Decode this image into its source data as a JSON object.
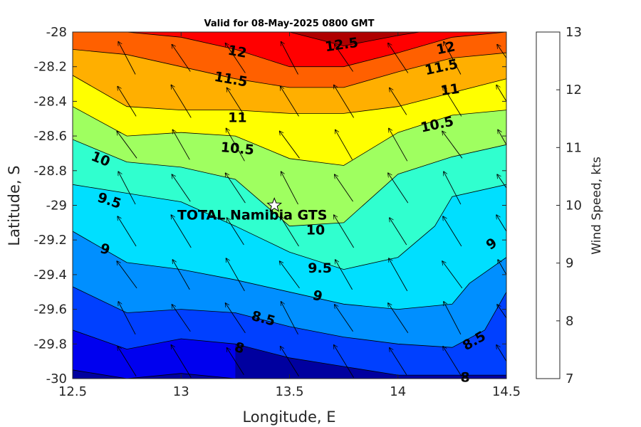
{
  "chart_data": {
    "type": "filled-contour",
    "title": "Valid for 08-May-2025 0800 GMT",
    "xlabel": "Longitude, E",
    "ylabel": "Latitude, S",
    "colorbar_label": "Wind Speed, kts",
    "xlim": [
      12.5,
      14.5
    ],
    "ylim": [
      -30,
      -28
    ],
    "xticks": [
      "12.5",
      "13",
      "13.5",
      "14",
      "14.5"
    ],
    "yticks": [
      "-28",
      "-28.2",
      "-28.4",
      "-28.6",
      "-28.8",
      "-29",
      "-29.2",
      "-29.4",
      "-29.6",
      "-29.8",
      "-30"
    ],
    "colorbar_range": [
      7,
      13
    ],
    "colorbar_ticks": [
      "7",
      "8",
      "9",
      "10",
      "11",
      "12",
      "13"
    ],
    "levels": [
      7,
      7.5,
      8,
      8.5,
      9,
      9.5,
      10,
      10.5,
      11,
      11.5,
      12,
      12.5,
      13
    ],
    "level_colors": [
      "#00009f",
      "#0000ef",
      "#0040ff",
      "#008fff",
      "#00dfff",
      "#30ffcf",
      "#9fff60",
      "#ffff00",
      "#ffaf00",
      "#ff6000",
      "#ff0000",
      "#af0000"
    ],
    "contours": [
      {
        "level": 7.5,
        "points": [
          [
            12.5,
            -29.95
          ],
          [
            12.75,
            -30.0
          ],
          [
            13.0,
            -29.97
          ],
          [
            13.25,
            -30.0
          ]
        ]
      },
      {
        "level": 8,
        "points": [
          [
            12.5,
            -29.72
          ],
          [
            12.75,
            -29.83
          ],
          [
            13.0,
            -29.77
          ],
          [
            13.25,
            -29.8
          ],
          [
            13.5,
            -29.88
          ],
          [
            13.75,
            -29.93
          ],
          [
            14.0,
            -29.98
          ],
          [
            14.25,
            -29.98
          ],
          [
            14.5,
            -29.98
          ]
        ]
      },
      {
        "level": 8.5,
        "points": [
          [
            12.5,
            -29.47
          ],
          [
            12.75,
            -29.62
          ],
          [
            13.0,
            -29.6
          ],
          [
            13.25,
            -29.62
          ],
          [
            13.5,
            -29.7
          ],
          [
            13.75,
            -29.76
          ],
          [
            14.0,
            -29.8
          ],
          [
            14.25,
            -29.82
          ],
          [
            14.4,
            -29.72
          ],
          [
            14.5,
            -29.5
          ]
        ]
      },
      {
        "level": 9,
        "points": [
          [
            12.5,
            -29.15
          ],
          [
            12.75,
            -29.33
          ],
          [
            13.0,
            -29.37
          ],
          [
            13.25,
            -29.43
          ],
          [
            13.5,
            -29.5
          ],
          [
            13.75,
            -29.57
          ],
          [
            14.0,
            -29.6
          ],
          [
            14.25,
            -29.57
          ],
          [
            14.33,
            -29.45
          ],
          [
            14.5,
            -29.3
          ]
        ]
      },
      {
        "level": 9.5,
        "points": [
          [
            12.5,
            -28.88
          ],
          [
            12.75,
            -28.93
          ],
          [
            13.0,
            -28.98
          ],
          [
            13.25,
            -29.12
          ],
          [
            13.5,
            -29.27
          ],
          [
            13.75,
            -29.37
          ],
          [
            14.0,
            -29.3
          ],
          [
            14.17,
            -29.12
          ],
          [
            14.25,
            -28.95
          ],
          [
            14.5,
            -28.88
          ]
        ]
      },
      {
        "level": 10,
        "points": [
          [
            12.5,
            -28.62
          ],
          [
            12.75,
            -28.75
          ],
          [
            13.0,
            -28.78
          ],
          [
            13.25,
            -28.85
          ],
          [
            13.5,
            -29.12
          ],
          [
            13.75,
            -29.1
          ],
          [
            14.0,
            -28.82
          ],
          [
            14.25,
            -28.72
          ],
          [
            14.5,
            -28.65
          ]
        ]
      },
      {
        "level": 10.5,
        "points": [
          [
            12.5,
            -28.43
          ],
          [
            12.75,
            -28.6
          ],
          [
            13.0,
            -28.58
          ],
          [
            13.25,
            -28.6
          ],
          [
            13.5,
            -28.73
          ],
          [
            13.75,
            -28.77
          ],
          [
            14.0,
            -28.58
          ],
          [
            14.25,
            -28.48
          ],
          [
            14.5,
            -28.45
          ]
        ]
      },
      {
        "level": 11,
        "points": [
          [
            12.5,
            -28.25
          ],
          [
            12.75,
            -28.43
          ],
          [
            13.0,
            -28.45
          ],
          [
            13.25,
            -28.45
          ],
          [
            13.5,
            -28.47
          ],
          [
            13.75,
            -28.47
          ],
          [
            14.0,
            -28.43
          ],
          [
            14.25,
            -28.35
          ],
          [
            14.5,
            -28.27
          ]
        ]
      },
      {
        "level": 11.5,
        "points": [
          [
            12.5,
            -28.1
          ],
          [
            12.75,
            -28.13
          ],
          [
            13.0,
            -28.2
          ],
          [
            13.25,
            -28.27
          ],
          [
            13.5,
            -28.32
          ],
          [
            13.75,
            -28.32
          ],
          [
            14.0,
            -28.23
          ],
          [
            14.25,
            -28.15
          ],
          [
            14.5,
            -28.12
          ]
        ]
      },
      {
        "level": 12,
        "points": [
          [
            12.5,
            -28.0
          ],
          [
            12.75,
            -28.0
          ],
          [
            13.0,
            -28.03
          ],
          [
            13.25,
            -28.1
          ],
          [
            13.5,
            -28.2
          ],
          [
            13.75,
            -28.2
          ],
          [
            14.0,
            -28.12
          ],
          [
            14.25,
            -28.03
          ],
          [
            14.5,
            -28.0
          ]
        ]
      },
      {
        "level": 12.5,
        "points": [
          [
            13.5,
            -28.0
          ],
          [
            13.75,
            -28.08
          ],
          [
            14.0,
            -28.02
          ],
          [
            14.1,
            -28.0
          ]
        ]
      }
    ],
    "contour_labels": [
      {
        "text": "12.5",
        "x": 13.74,
        "y": -28.07,
        "angle": -8
      },
      {
        "text": "12",
        "x": 13.26,
        "y": -28.11,
        "angle": 10
      },
      {
        "text": "12",
        "x": 14.22,
        "y": -28.09,
        "angle": -12
      },
      {
        "text": "11.5",
        "x": 13.23,
        "y": -28.27,
        "angle": 10
      },
      {
        "text": "11.5",
        "x": 14.2,
        "y": -28.2,
        "angle": -12
      },
      {
        "text": "11",
        "x": 13.26,
        "y": -28.49,
        "angle": 0
      },
      {
        "text": "11",
        "x": 14.24,
        "y": -28.33,
        "angle": -8
      },
      {
        "text": "10.5",
        "x": 13.26,
        "y": -28.67,
        "angle": 5
      },
      {
        "text": "10.5",
        "x": 14.18,
        "y": -28.53,
        "angle": -12
      },
      {
        "text": "10",
        "x": 12.63,
        "y": -28.73,
        "angle": 22
      },
      {
        "text": "10",
        "x": 13.62,
        "y": -29.14,
        "angle": 0
      },
      {
        "text": "9.5",
        "x": 12.67,
        "y": -28.97,
        "angle": 18
      },
      {
        "text": "9.5",
        "x": 13.64,
        "y": -29.36,
        "angle": 0
      },
      {
        "text": "9",
        "x": 12.65,
        "y": -29.25,
        "angle": 15
      },
      {
        "text": "9",
        "x": 13.63,
        "y": -29.52,
        "angle": 15
      },
      {
        "text": "9",
        "x": 14.43,
        "y": -29.22,
        "angle": -35
      },
      {
        "text": "8.5",
        "x": 13.38,
        "y": -29.65,
        "angle": 15
      },
      {
        "text": "8.5",
        "x": 14.35,
        "y": -29.78,
        "angle": -30
      },
      {
        "text": "8",
        "x": 13.27,
        "y": -29.82,
        "angle": 15
      },
      {
        "text": "8",
        "x": 14.31,
        "y": -29.99,
        "angle": 0
      }
    ],
    "wind_vectors": {
      "x": [
        12.75,
        13.0,
        13.25,
        13.5,
        13.75,
        14.0,
        14.25,
        14.5
      ],
      "y": [
        -28.15,
        -28.4,
        -28.65,
        -28.9,
        -29.15,
        -29.4,
        -29.65,
        -29.9
      ],
      "u_sign": -1,
      "direction_note": "arrows point toward north-west"
    },
    "station": {
      "name": "TOTAL Namibia GTS",
      "lon": 13.43,
      "lat": -29.0,
      "marker": "star"
    }
  }
}
